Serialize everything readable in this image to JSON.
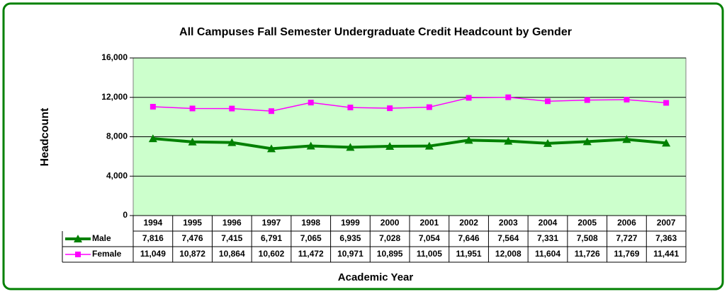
{
  "chart_data": {
    "type": "line",
    "title": "All Campuses Fall Semester Undergraduate Credit Headcount by Gender",
    "x_label": "Academic Year",
    "y_label": "Headcount",
    "categories": [
      "1994",
      "1995",
      "1996",
      "1997",
      "1998",
      "1999",
      "2000",
      "2001",
      "2002",
      "2003",
      "2004",
      "2005",
      "2006",
      "2007"
    ],
    "series": [
      {
        "name": "Male",
        "color": "#008000",
        "marker": "triangle",
        "values": [
          7816,
          7476,
          7415,
          6791,
          7065,
          6935,
          7028,
          7054,
          7646,
          7564,
          7331,
          7508,
          7727,
          7363
        ],
        "value_labels": [
          "7,816",
          "7,476",
          "7,415",
          "6,791",
          "7,065",
          "6,935",
          "7,028",
          "7,054",
          "7,646",
          "7,564",
          "7,331",
          "7,508",
          "7,727",
          "7,363"
        ]
      },
      {
        "name": "Female",
        "color": "#ff00ff",
        "marker": "square",
        "values": [
          11049,
          10872,
          10864,
          10602,
          11472,
          10971,
          10895,
          11005,
          11951,
          12008,
          11604,
          11726,
          11769,
          11441
        ],
        "value_labels": [
          "11,049",
          "10,872",
          "10,864",
          "10,602",
          "11,472",
          "10,971",
          "10,895",
          "11,005",
          "11,951",
          "12,008",
          "11,604",
          "11,726",
          "11,769",
          "11,441"
        ]
      }
    ],
    "ylim": [
      0,
      16000
    ],
    "yticks": [
      {
        "value": 0,
        "label": "0"
      },
      {
        "value": 4000,
        "label": "4,000"
      },
      {
        "value": 8000,
        "label": "8,000"
      },
      {
        "value": 12000,
        "label": "12,000"
      },
      {
        "value": 16000,
        "label": "16,000"
      }
    ],
    "grid": true,
    "plot_background": "#ccffcc"
  }
}
